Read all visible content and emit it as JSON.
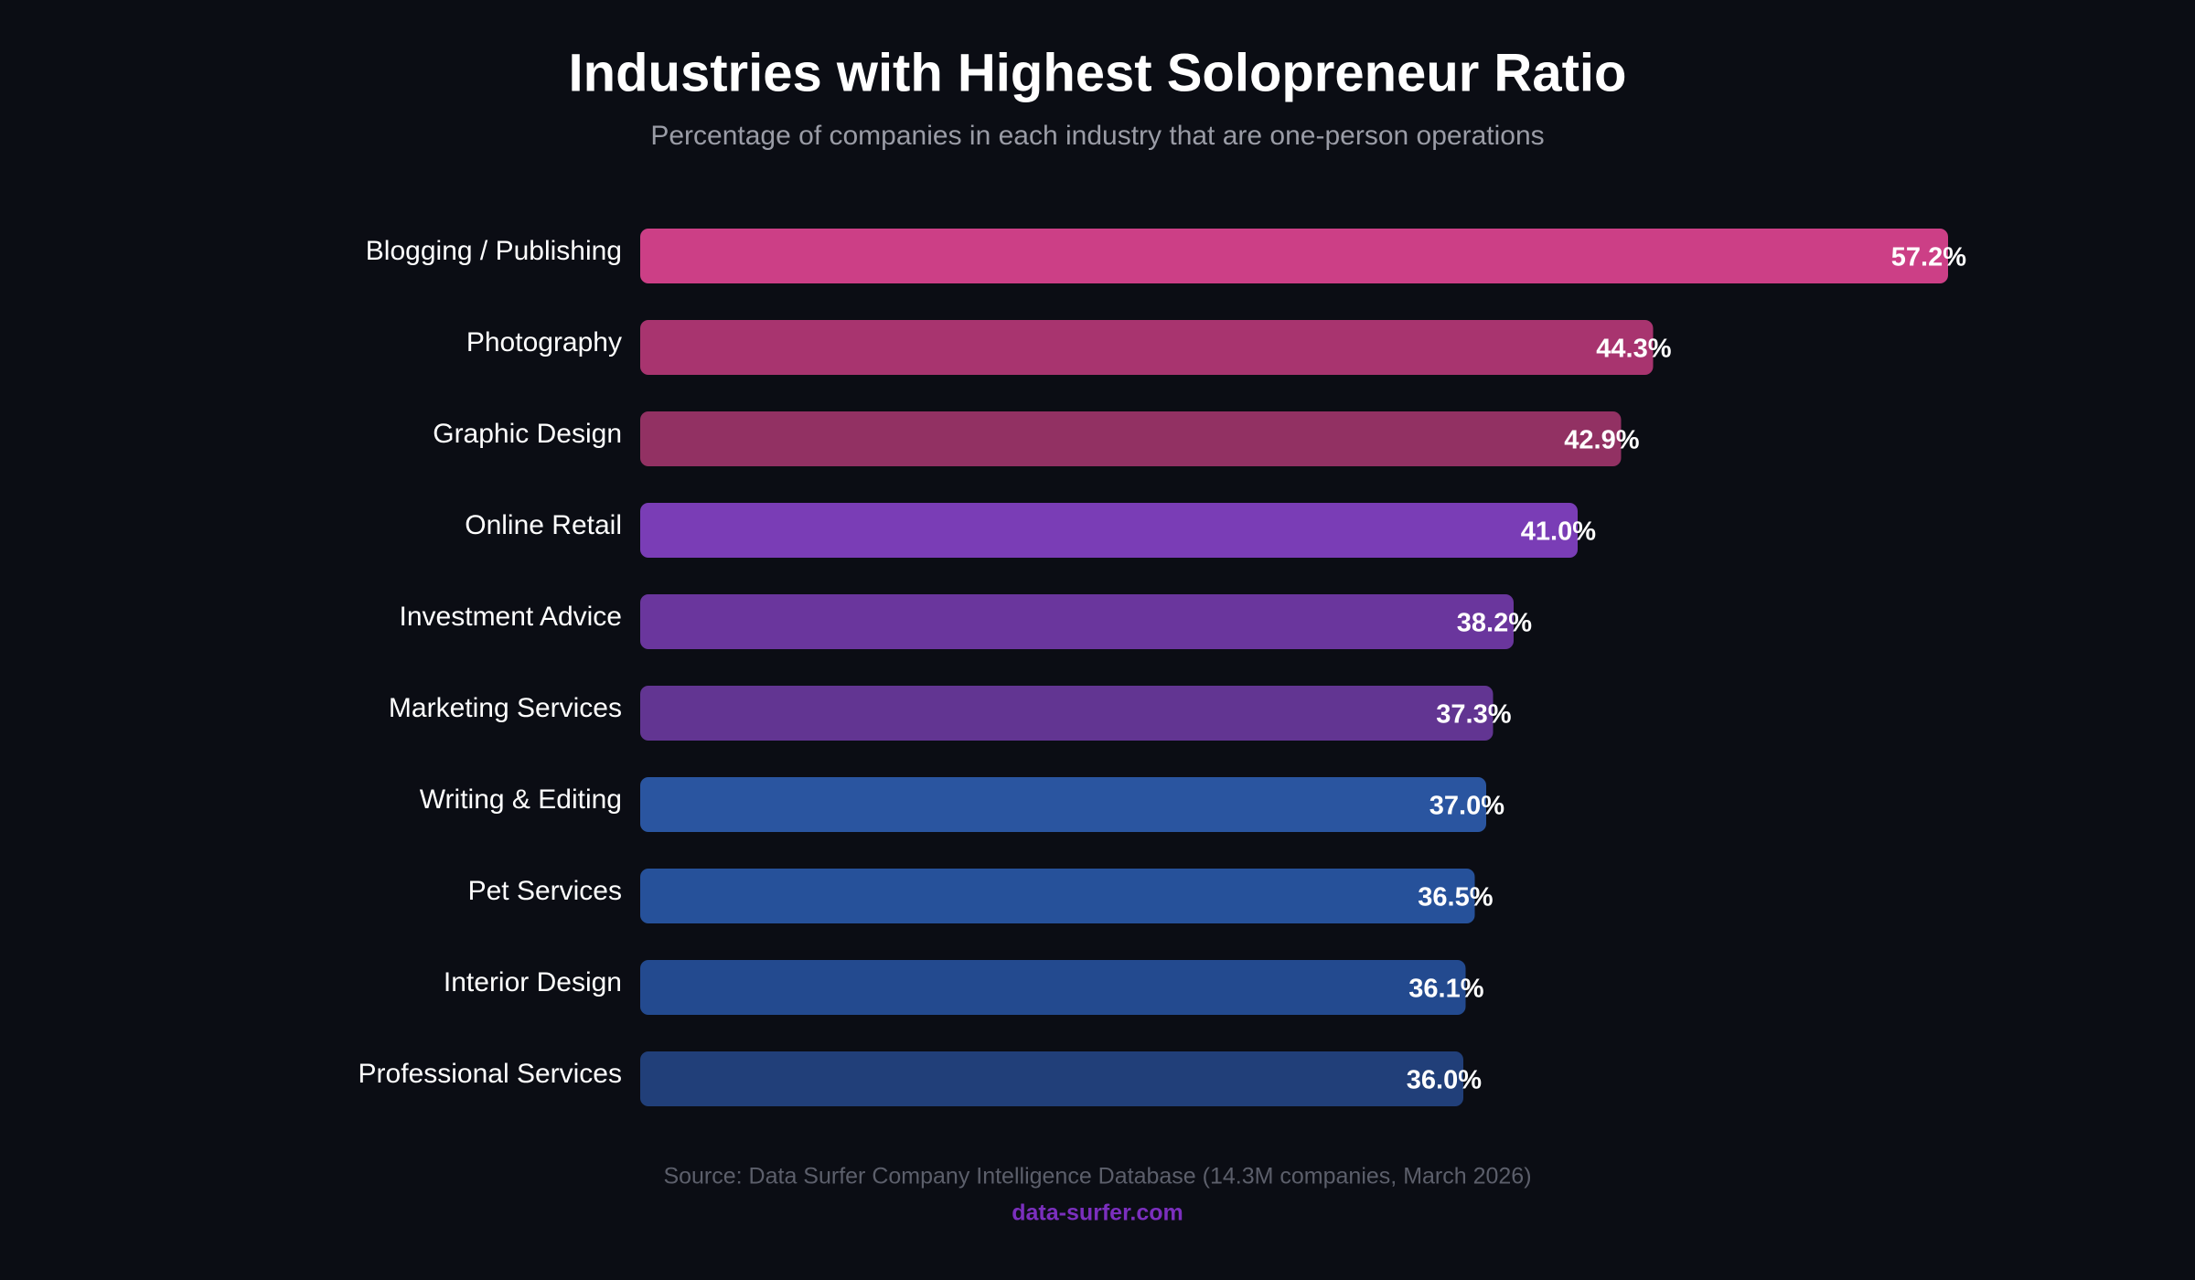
{
  "chart_data": {
    "type": "bar",
    "orientation": "horizontal",
    "title": "Industries with Highest Solopreneur Ratio",
    "subtitle": "Percentage of companies in each industry that are one-person operations",
    "categories": [
      "Blogging / Publishing",
      "Photography",
      "Graphic Design",
      "Online Retail",
      "Investment Advice",
      "Marketing Services",
      "Writing & Editing",
      "Pet Services",
      "Interior Design",
      "Professional Services"
    ],
    "values": [
      57.2,
      44.3,
      42.9,
      41.0,
      38.2,
      37.3,
      37.0,
      36.5,
      36.1,
      36.0
    ],
    "value_labels": [
      "57.2%",
      "44.3%",
      "42.9%",
      "41.0%",
      "38.2%",
      "37.3%",
      "37.0%",
      "36.5%",
      "36.1%",
      "36.0%"
    ],
    "colors": [
      "#cc3f86",
      "#a8346f",
      "#923163",
      "#7a3db6",
      "#6a369d",
      "#623592",
      "#2a55a0",
      "#26519a",
      "#234a8f",
      "#213f79"
    ],
    "source": "Source: Data Surfer Company Intelligence Database (14.3M companies, March 2026)",
    "url": "data-surfer.com"
  }
}
